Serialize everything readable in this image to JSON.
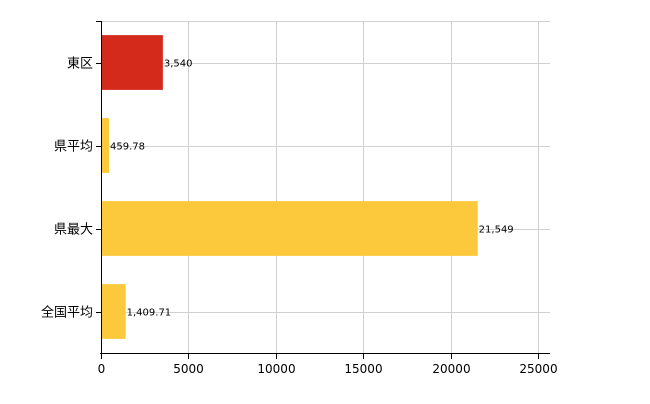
{
  "chart_data": {
    "type": "bar",
    "orientation": "horizontal",
    "categories": [
      "東区",
      "県平均",
      "県最大",
      "全国平均"
    ],
    "values": [
      3540,
      459.78,
      21549,
      1409.71
    ],
    "value_labels": [
      "3,540",
      "459.78",
      "21,549",
      "1,409.71"
    ],
    "bar_colors": [
      "#d42a1c",
      "#fcc93c",
      "#fcc93c",
      "#fcc93c"
    ],
    "title": "",
    "xlabel": "",
    "ylabel": "",
    "xlim": [
      0,
      25000
    ],
    "x_ticks": [
      0,
      5000,
      10000,
      15000,
      20000,
      25000
    ],
    "x_tick_labels": [
      "0",
      "5000",
      "10000",
      "15000",
      "20000",
      "25000"
    ],
    "grid": true,
    "legend": "none"
  }
}
